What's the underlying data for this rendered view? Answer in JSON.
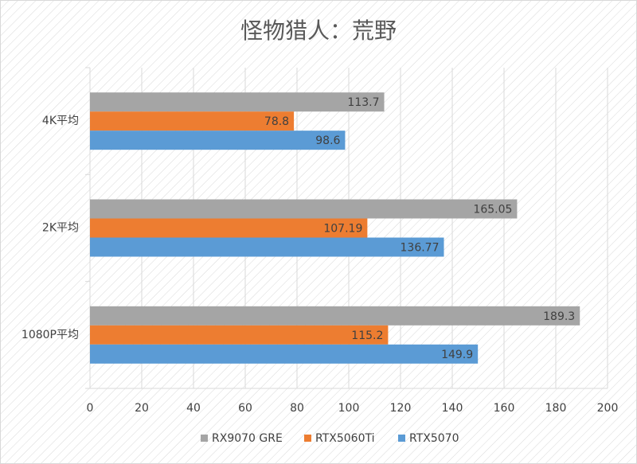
{
  "chart_data": {
    "type": "bar",
    "orientation": "horizontal",
    "title": "怪物猎人：荒野",
    "categories": [
      "4K平均",
      "2K平均",
      "1080P平均"
    ],
    "series": [
      {
        "name": "RX9070 GRE",
        "color": "#a5a5a5",
        "values": [
          113.7,
          165.05,
          189.3
        ]
      },
      {
        "name": "RTX5060Ti",
        "color": "#ed7d31",
        "values": [
          78.8,
          107.19,
          115.2
        ]
      },
      {
        "name": "RTX5070",
        "color": "#5b9bd5",
        "values": [
          98.6,
          136.77,
          149.9
        ]
      }
    ],
    "xlim": [
      0,
      200
    ],
    "xticks": [
      0,
      20,
      40,
      60,
      80,
      100,
      120,
      140,
      160,
      180,
      200
    ],
    "grid": true,
    "legend": "bottom"
  }
}
